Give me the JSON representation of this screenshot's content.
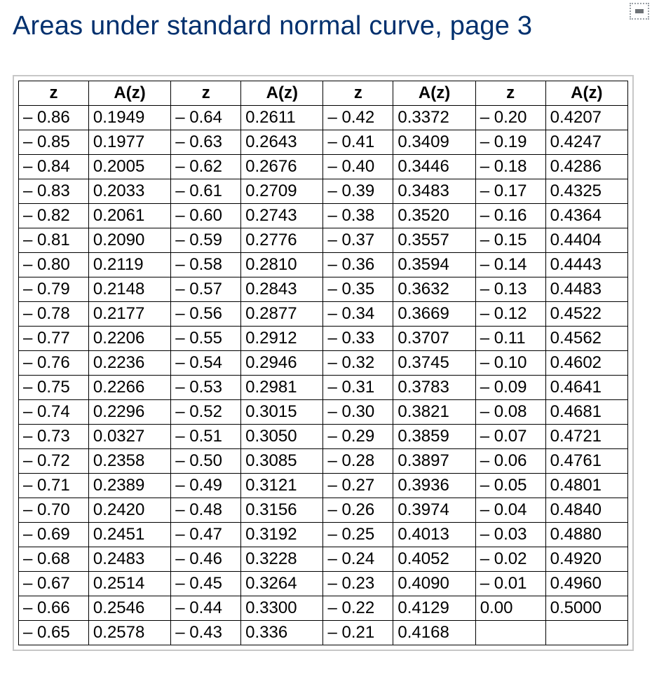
{
  "title": "Areas under standard normal curve, page 3",
  "colors": {
    "title_color": "#00306e",
    "border_color": "#000000",
    "outer_border": "#c7c7c7",
    "background": "#ffffff",
    "text_color": "#000000"
  },
  "typography": {
    "title_fontsize_pt": 28,
    "cell_fontsize_pt": 18,
    "font_family": "Helvetica"
  },
  "table": {
    "type": "table",
    "column_pairs": 4,
    "headers_pair": [
      "z",
      "A(z)"
    ],
    "column_widths_pct": [
      11.5,
      13.5,
      11.5,
      13.5,
      11.5,
      13.5,
      11.5,
      13.5
    ],
    "z_cell_align": "left",
    "a_cell_align": "left",
    "minus_format": "– {v}",
    "rows": [
      [
        [
          "– 0.86",
          "0.1949"
        ],
        [
          "– 0.64",
          "0.2611"
        ],
        [
          "– 0.42",
          "0.3372"
        ],
        [
          "– 0.20",
          "0.4207"
        ]
      ],
      [
        [
          "– 0.85",
          "0.1977"
        ],
        [
          "– 0.63",
          "0.2643"
        ],
        [
          "– 0.41",
          "0.3409"
        ],
        [
          "– 0.19",
          "0.4247"
        ]
      ],
      [
        [
          "– 0.84",
          "0.2005"
        ],
        [
          "– 0.62",
          "0.2676"
        ],
        [
          "– 0.40",
          "0.3446"
        ],
        [
          "– 0.18",
          "0.4286"
        ]
      ],
      [
        [
          "– 0.83",
          "0.2033"
        ],
        [
          "– 0.61",
          "0.2709"
        ],
        [
          "– 0.39",
          "0.3483"
        ],
        [
          "– 0.17",
          "0.4325"
        ]
      ],
      [
        [
          "– 0.82",
          "0.2061"
        ],
        [
          "– 0.60",
          "0.2743"
        ],
        [
          "– 0.38",
          "0.3520"
        ],
        [
          "– 0.16",
          "0.4364"
        ]
      ],
      [
        [
          "– 0.81",
          "0.2090"
        ],
        [
          "– 0.59",
          "0.2776"
        ],
        [
          "– 0.37",
          "0.3557"
        ],
        [
          "– 0.15",
          "0.4404"
        ]
      ],
      [
        [
          "– 0.80",
          "0.2119"
        ],
        [
          "– 0.58",
          "0.2810"
        ],
        [
          "– 0.36",
          "0.3594"
        ],
        [
          "– 0.14",
          "0.4443"
        ]
      ],
      [
        [
          "– 0.79",
          "0.2148"
        ],
        [
          "– 0.57",
          "0.2843"
        ],
        [
          "– 0.35",
          "0.3632"
        ],
        [
          "– 0.13",
          "0.4483"
        ]
      ],
      [
        [
          "– 0.78",
          "0.2177"
        ],
        [
          "– 0.56",
          "0.2877"
        ],
        [
          "– 0.34",
          "0.3669"
        ],
        [
          "– 0.12",
          "0.4522"
        ]
      ],
      [
        [
          "– 0.77",
          "0.2206"
        ],
        [
          "– 0.55",
          "0.2912"
        ],
        [
          "– 0.33",
          "0.3707"
        ],
        [
          "– 0.11",
          "0.4562"
        ]
      ],
      [
        [
          "– 0.76",
          "0.2236"
        ],
        [
          "– 0.54",
          "0.2946"
        ],
        [
          "– 0.32",
          "0.3745"
        ],
        [
          "– 0.10",
          "0.4602"
        ]
      ],
      [
        [
          "– 0.75",
          "0.2266"
        ],
        [
          "– 0.53",
          "0.2981"
        ],
        [
          "– 0.31",
          "0.3783"
        ],
        [
          "– 0.09",
          "0.4641"
        ]
      ],
      [
        [
          "– 0.74",
          "0.2296"
        ],
        [
          "– 0.52",
          "0.3015"
        ],
        [
          "– 0.30",
          "0.3821"
        ],
        [
          "– 0.08",
          "0.4681"
        ]
      ],
      [
        [
          "– 0.73",
          "0.0327"
        ],
        [
          "– 0.51",
          "0.3050"
        ],
        [
          "– 0.29",
          "0.3859"
        ],
        [
          "– 0.07",
          "0.4721"
        ]
      ],
      [
        [
          "– 0.72",
          "0.2358"
        ],
        [
          "– 0.50",
          "0.3085"
        ],
        [
          "– 0.28",
          "0.3897"
        ],
        [
          "– 0.06",
          "0.4761"
        ]
      ],
      [
        [
          "– 0.71",
          "0.2389"
        ],
        [
          "– 0.49",
          "0.3121"
        ],
        [
          "– 0.27",
          "0.3936"
        ],
        [
          "– 0.05",
          "0.4801"
        ]
      ],
      [
        [
          "– 0.70",
          "0.2420"
        ],
        [
          "– 0.48",
          "0.3156"
        ],
        [
          "– 0.26",
          "0.3974"
        ],
        [
          "– 0.04",
          "0.4840"
        ]
      ],
      [
        [
          "– 0.69",
          "0.2451"
        ],
        [
          "– 0.47",
          "0.3192"
        ],
        [
          "– 0.25",
          "0.4013"
        ],
        [
          "– 0.03",
          "0.4880"
        ]
      ],
      [
        [
          "– 0.68",
          "0.2483"
        ],
        [
          "– 0.46",
          "0.3228"
        ],
        [
          "– 0.24",
          "0.4052"
        ],
        [
          "– 0.02",
          "0.4920"
        ]
      ],
      [
        [
          "– 0.67",
          "0.2514"
        ],
        [
          "– 0.45",
          "0.3264"
        ],
        [
          "– 0.23",
          "0.4090"
        ],
        [
          "– 0.01",
          "0.4960"
        ]
      ],
      [
        [
          "– 0.66",
          "0.2546"
        ],
        [
          "– 0.44",
          "0.3300"
        ],
        [
          "– 0.22",
          "0.4129"
        ],
        [
          "0.00",
          "0.5000"
        ]
      ],
      [
        [
          "– 0.65",
          "0.2578"
        ],
        [
          "– 0.43",
          "0.336"
        ],
        [
          "– 0.21",
          "0.4168"
        ],
        [
          "",
          ""
        ]
      ]
    ]
  }
}
